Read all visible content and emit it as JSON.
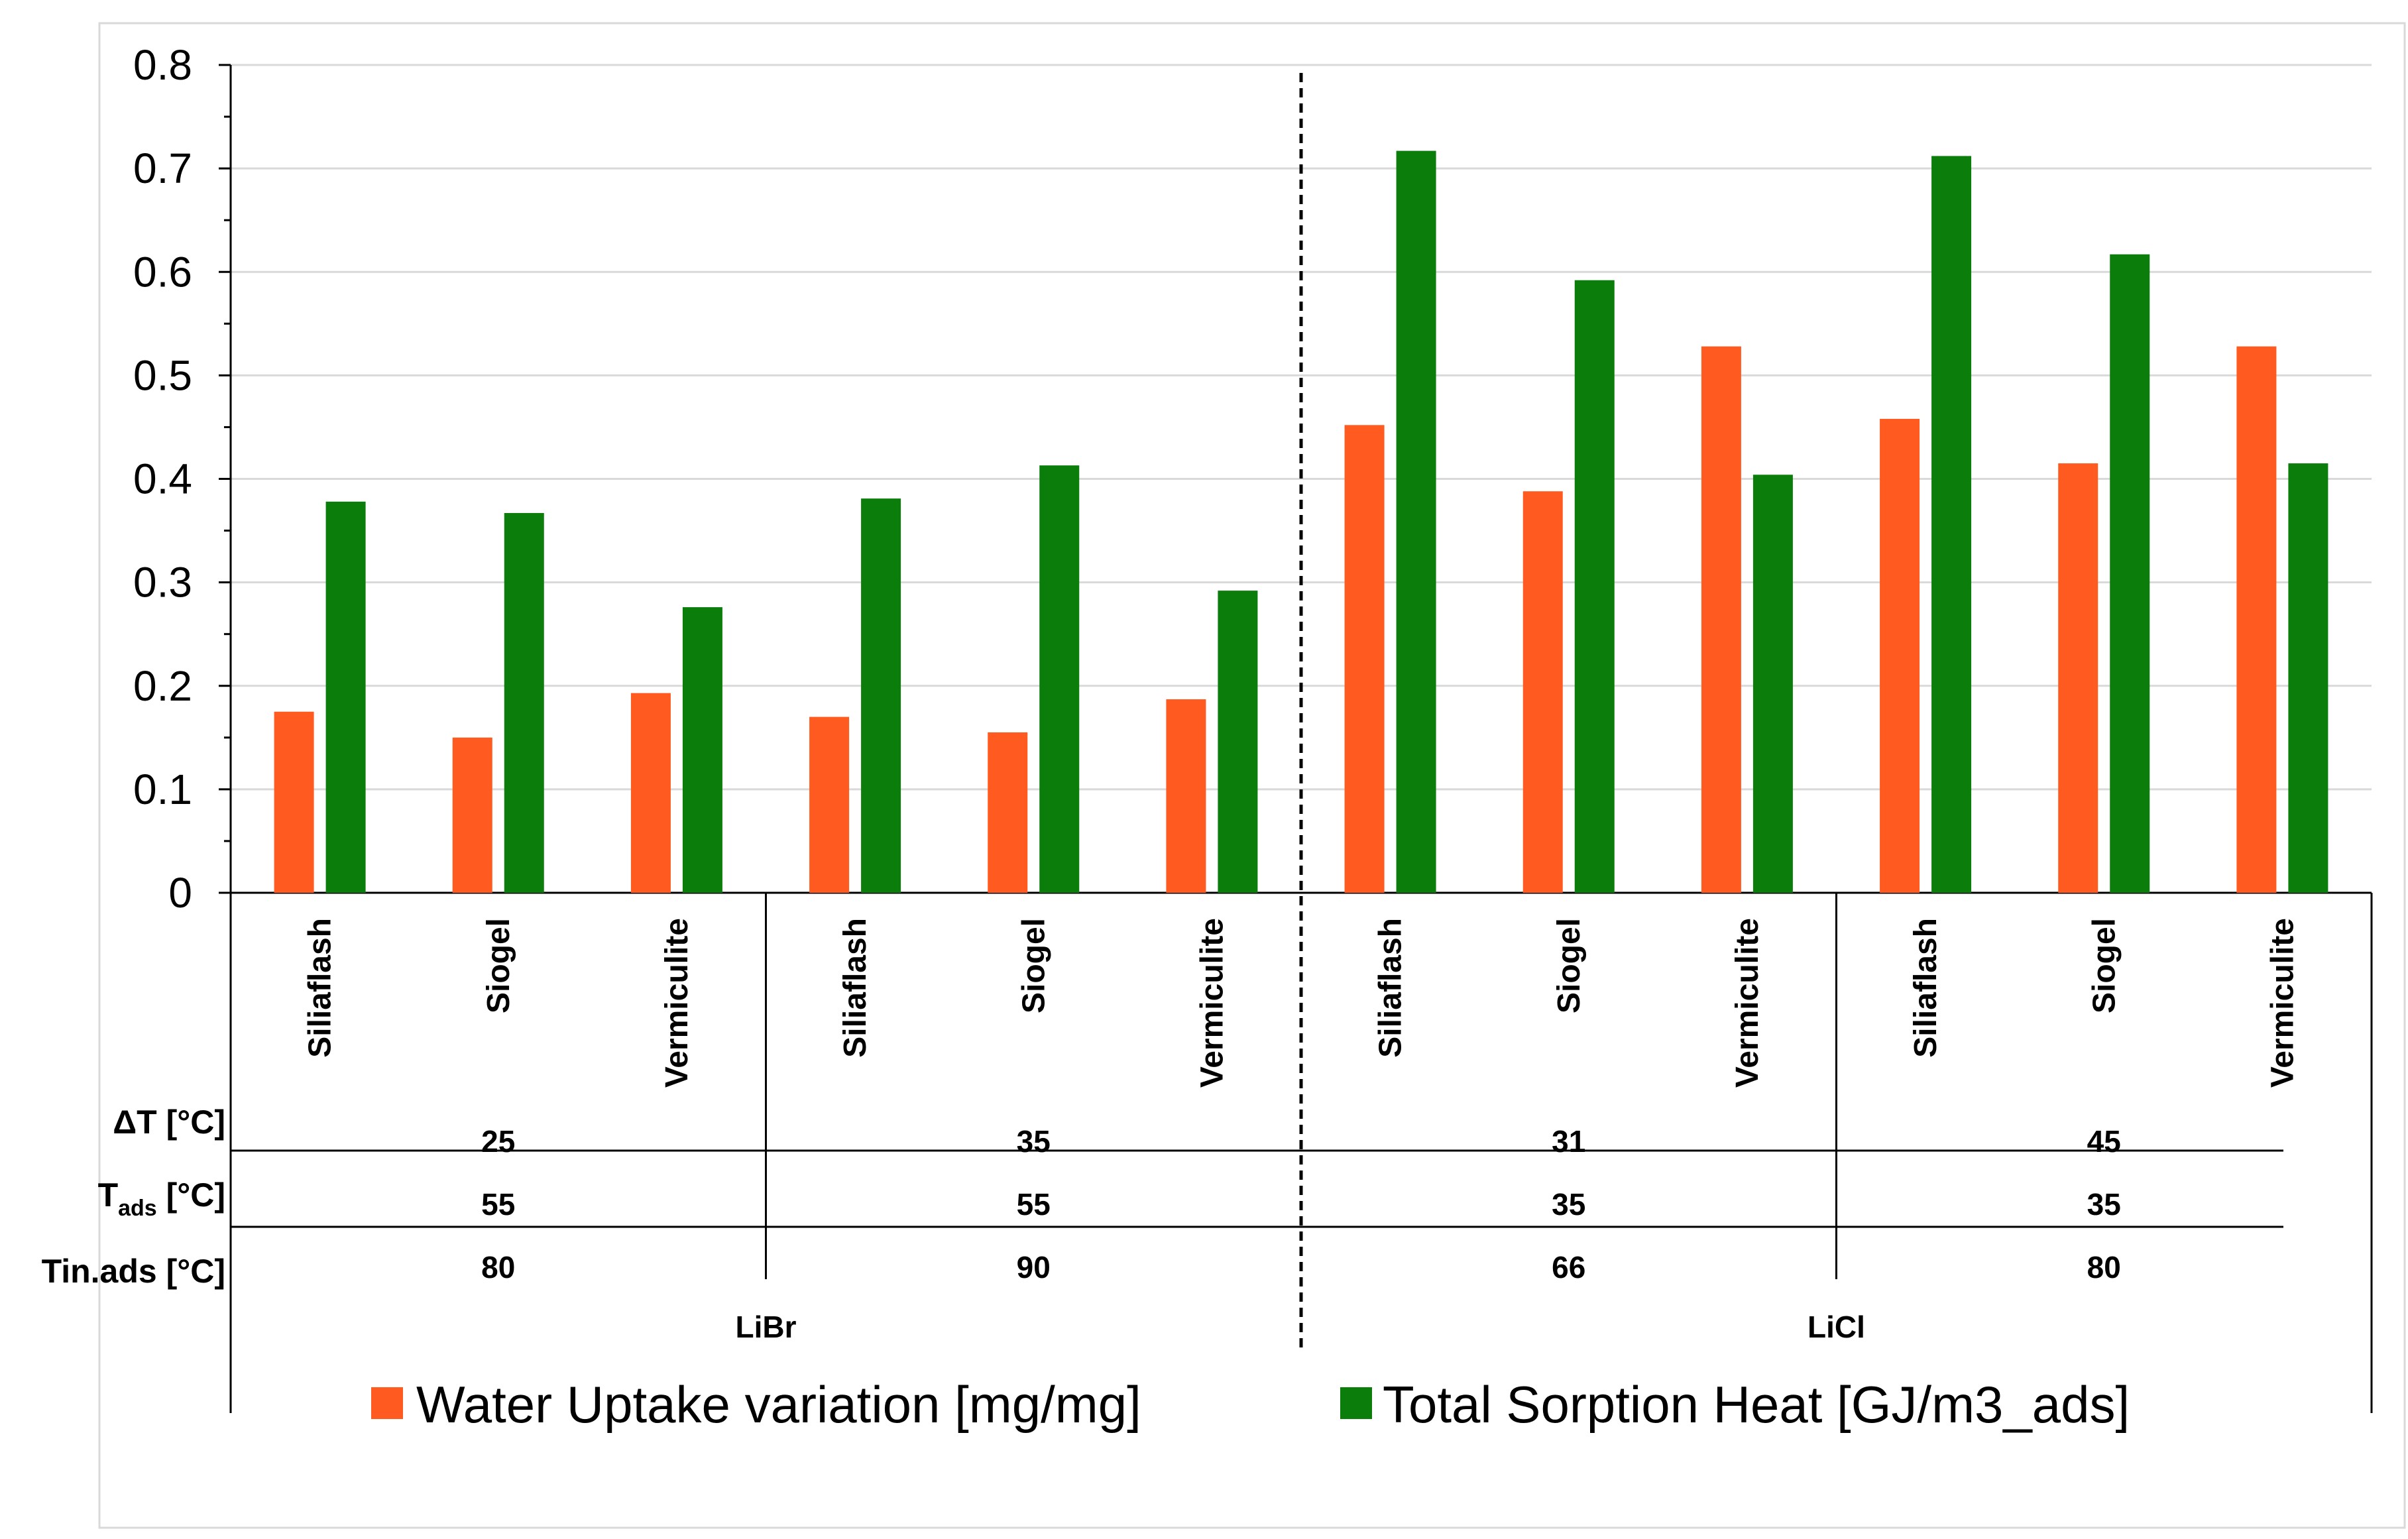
{
  "chart_data": {
    "type": "bar",
    "title": "",
    "xlabel": "",
    "ylabel": "",
    "ylim": [
      0,
      0.8
    ],
    "yticks": [
      "0",
      "0.1",
      "0.2",
      "0.3",
      "0.4",
      "0.5",
      "0.6",
      "0.7",
      "0.8"
    ],
    "grid": true,
    "categories": [
      "Siliaflash",
      "Siogel",
      "Vermiculite",
      "Siliaflash",
      "Siogel",
      "Vermiculite",
      "Siliaflash",
      "Siogel",
      "Vermiculite",
      "Siliaflash",
      "Siogel",
      "Vermiculite"
    ],
    "series": [
      {
        "name": "Water Uptake variation [mg/mg]",
        "color": "#FF5A1F",
        "values": [
          0.175,
          0.15,
          0.193,
          0.17,
          0.155,
          0.187,
          0.452,
          0.388,
          0.528,
          0.458,
          0.415,
          0.528
        ]
      },
      {
        "name": "Total Sorption Heat [GJ/m3_ads]",
        "color": "#0B7D0B",
        "values": [
          0.378,
          0.367,
          0.276,
          0.381,
          0.413,
          0.292,
          0.717,
          0.592,
          0.404,
          0.712,
          0.617,
          0.415
        ]
      }
    ],
    "parameter_rows": {
      "delta_t": {
        "label_main": "ΔT [°C]",
        "values": [
          "25",
          "35",
          "31",
          "45"
        ]
      },
      "t_ads": {
        "label_main": "T",
        "label_sub": "ads",
        "label_rest": " [°C]",
        "values": [
          "55",
          "55",
          "35",
          "35"
        ]
      },
      "tin_ads": {
        "label_main": "Tin.ads [°C]",
        "values": [
          "80",
          "90",
          "66",
          "80"
        ]
      }
    },
    "salt_groups": [
      "LiBr",
      "LiCl"
    ],
    "legend_position": "bottom"
  }
}
